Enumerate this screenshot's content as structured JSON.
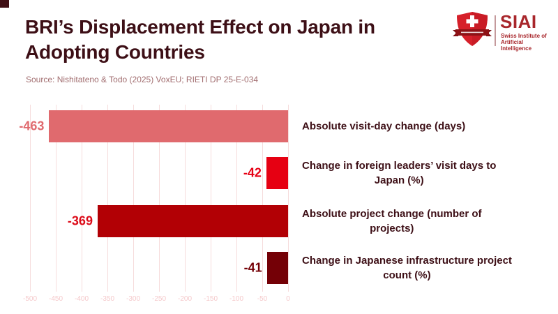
{
  "page": {
    "title_line1": "BRI’s Displacement Effect on Japan in",
    "title_line2": "Adopting Countries",
    "source": "Source: Nishitateno & Todo (2025) VoxEU; RIETI DP 25-E-034"
  },
  "logo": {
    "brand": "SIAI",
    "subtitle_line1": "Swiss Institute of",
    "subtitle_line2": "Artificial Intelligence"
  },
  "colors": {
    "title_text": "#3d0f16",
    "source_text": "#a26e70",
    "brand_red": "#a8262b",
    "shield_red": "#d6202a",
    "ribbon_dark_red": "#8e1216",
    "gridline": "#f6dcdc",
    "tick_text": "#f5c9cb",
    "corner_square": "#400f15"
  },
  "chart_data": {
    "type": "bar",
    "orientation": "horizontal",
    "title": "BRI’s Displacement Effect on Japan in Adopting Countries",
    "xlabel": "",
    "ylabel": "",
    "xlim": [
      -500,
      0
    ],
    "grid": true,
    "xticks": [
      -500,
      -450,
      -400,
      -350,
      -300,
      -250,
      -200,
      -150,
      -100,
      -50,
      0
    ],
    "categories": [
      {
        "label": "Absolute visit-day change (days)",
        "lines": [
          "Absolute visit-day change (days)"
        ]
      },
      {
        "label": "Change in foreign leaders’ visit days to Japan (%)",
        "lines": [
          "Change in foreign leaders’ visit days to",
          "Japan (%)"
        ]
      },
      {
        "label": "Absolute project change (number of projects)",
        "lines": [
          "Absolute project change (number of",
          "projects)"
        ]
      },
      {
        "label": "Change in Japanese infrastructure project count (%)",
        "lines": [
          "Change in Japanese infrastructure project",
          "count (%)"
        ]
      }
    ],
    "values": [
      -463,
      -42,
      -369,
      -41
    ],
    "value_labels": [
      "-463",
      "-42",
      "-369",
      "-41"
    ],
    "bar_colors": [
      "#e06a6e",
      "#e60012",
      "#b20005",
      "#740006"
    ],
    "value_label_colors": [
      "#e06a6e",
      "#e60014",
      "#dc0a18",
      "#740006"
    ]
  }
}
